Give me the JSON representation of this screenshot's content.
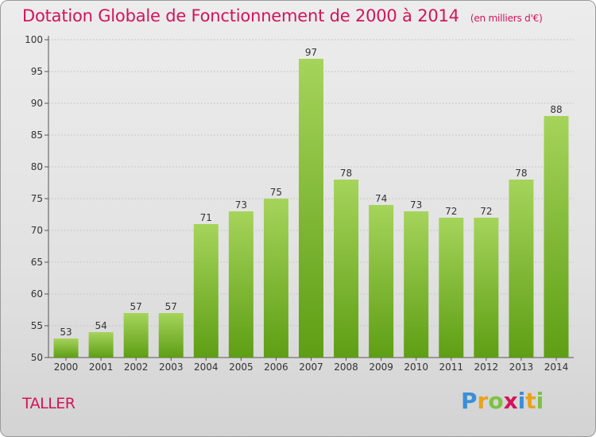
{
  "header": {
    "title": "Dotation Globale de Fonctionnement de 2000 à 2014",
    "unit": "(en milliers d'€)"
  },
  "footer": {
    "commune": "TALLER",
    "logo": "Proxiti"
  },
  "colors": {
    "title": "#d2145a",
    "bar_top": "#a5d45b",
    "bar_bottom": "#5e9e14"
  },
  "chart_data": {
    "type": "bar",
    "title": "Dotation Globale de Fonctionnement de 2000 à 2014",
    "subtitle": "(en milliers d'€)",
    "xlabel": "",
    "ylabel": "",
    "categories": [
      "2000",
      "2001",
      "2002",
      "2003",
      "2004",
      "2005",
      "2006",
      "2007",
      "2008",
      "2009",
      "2010",
      "2011",
      "2012",
      "2013",
      "2014"
    ],
    "values": [
      53,
      54,
      57,
      57,
      71,
      73,
      75,
      97,
      78,
      74,
      73,
      72,
      72,
      78,
      88
    ],
    "ylim": [
      50,
      100
    ],
    "yticks": [
      50,
      55,
      60,
      65,
      70,
      75,
      80,
      85,
      90,
      95,
      100
    ],
    "grid": true
  }
}
